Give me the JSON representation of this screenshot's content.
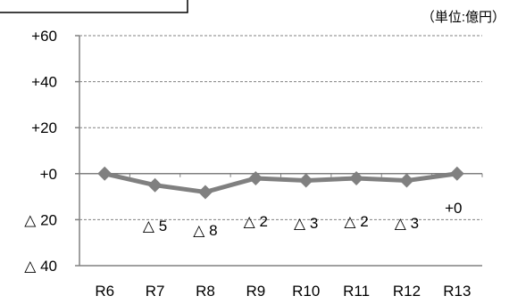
{
  "chart_data": {
    "type": "line",
    "categories": [
      "R6",
      "R7",
      "R8",
      "R9",
      "R10",
      "R11",
      "R12",
      "R13"
    ],
    "values": [
      0,
      -5,
      -8,
      -2,
      -3,
      -2,
      -3,
      0
    ],
    "data_labels": [
      "",
      "△ 5",
      "△ 8",
      "△ 2",
      "△ 3",
      "△ 2",
      "△ 3",
      "+0"
    ],
    "unit": "（単位:億円）",
    "ylim": [
      -40,
      60
    ],
    "yticks": [
      60,
      40,
      20,
      0,
      -20,
      -40
    ],
    "ytick_labels": [
      "+60",
      "+40",
      "+20",
      "+0",
      "△ 20",
      "△ 40"
    ],
    "grid": true,
    "colors": {
      "line": "#808080",
      "marker": "#808080",
      "grid": "#808080",
      "axis": "#808080"
    }
  }
}
